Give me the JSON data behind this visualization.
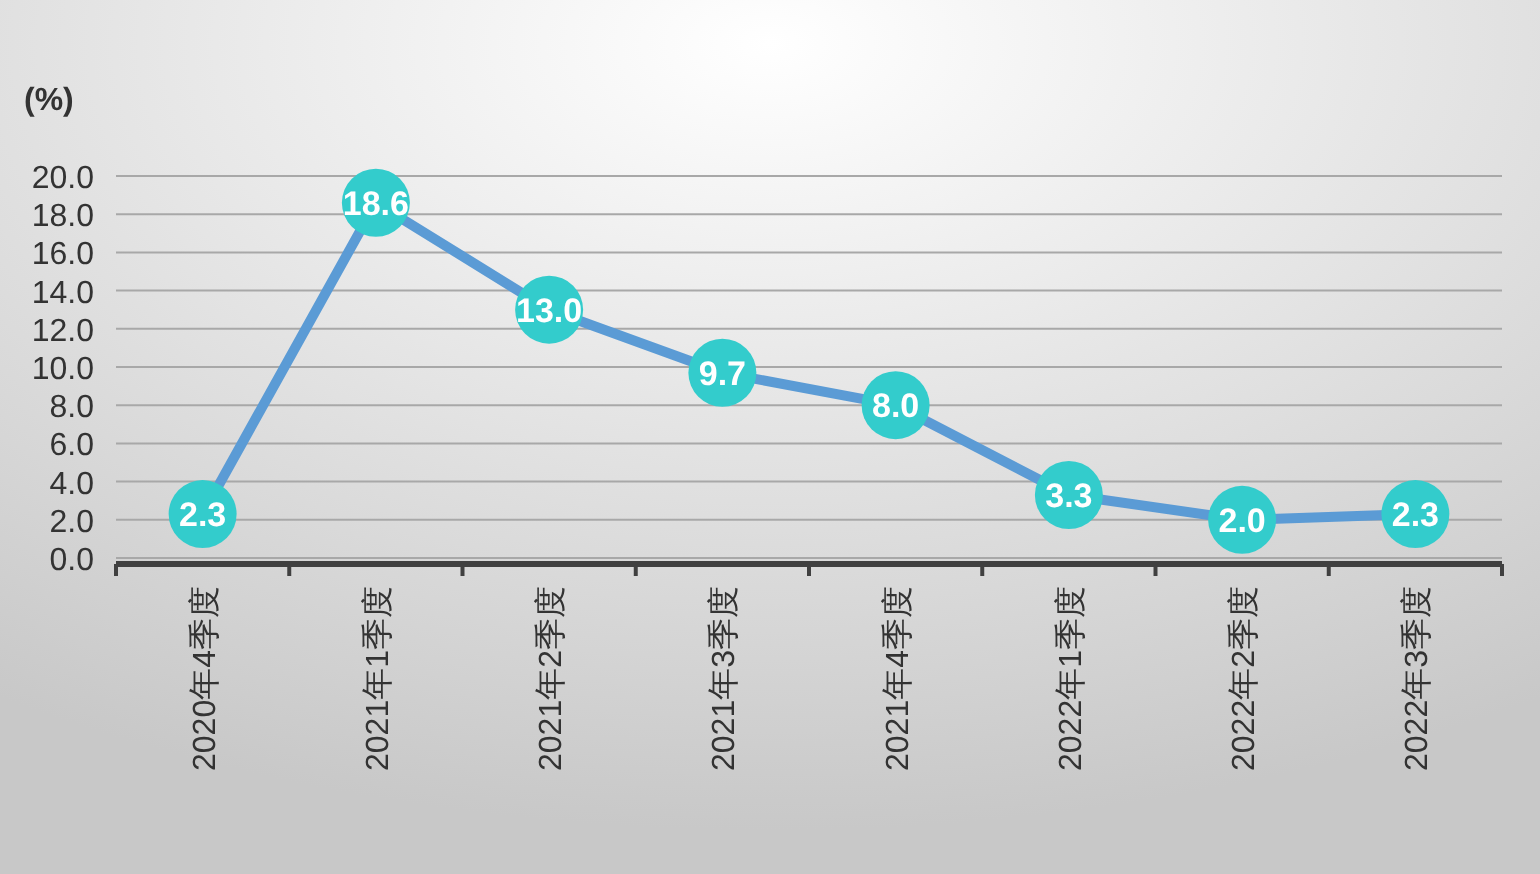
{
  "chart_data": {
    "type": "line",
    "ylabel": "(%)",
    "categories": [
      "2020年4季度",
      "2021年1季度",
      "2021年2季度",
      "2021年3季度",
      "2021年4季度",
      "2022年1季度",
      "2022年2季度",
      "2022年3季度"
    ],
    "values": [
      2.3,
      18.6,
      13.0,
      9.7,
      8.0,
      3.3,
      2.0,
      2.3
    ],
    "value_labels": [
      "2.3",
      "18.6",
      "13.0",
      "9.7",
      "8.0",
      "3.3",
      "2.0",
      "2.3"
    ],
    "color": "#5b9bd5",
    "colors": [
      "#33cccc",
      "#33cccc",
      "#33cccc",
      "#33cccc",
      "#33cccc",
      "#33cccc",
      "#33cccc",
      "#33cccc"
    ],
    "marker": "circle",
    "grid": "y",
    "ylim": [
      0,
      20
    ],
    "yticks": [
      {
        "value": 0,
        "label": "0.0"
      },
      {
        "value": 2,
        "label": "2.0"
      },
      {
        "value": 4,
        "label": "4.0"
      },
      {
        "value": 6,
        "label": "6.0"
      },
      {
        "value": 8,
        "label": "8.0"
      },
      {
        "value": 10,
        "label": "10.0"
      },
      {
        "value": 12,
        "label": "12.0"
      },
      {
        "value": 14,
        "label": "14.0"
      },
      {
        "value": 16,
        "label": "16.0"
      },
      {
        "value": 18,
        "label": "18.0"
      },
      {
        "value": 20,
        "label": "20.0"
      }
    ]
  }
}
